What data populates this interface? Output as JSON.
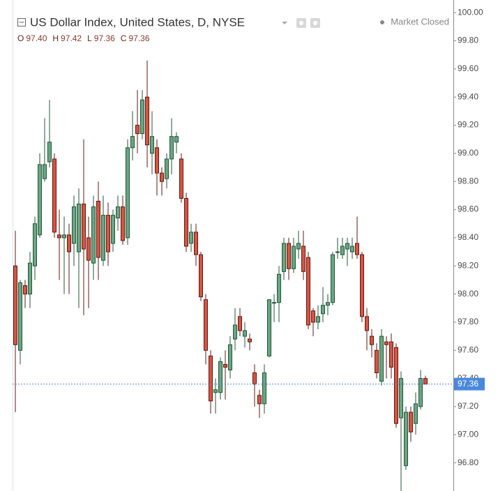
{
  "chart_data": {
    "type": "candlestick",
    "title": "US Dollar Index, United States, D, NYSE",
    "status": "Market Closed",
    "ohlc_legend": {
      "labels": [
        "O",
        "H",
        "L",
        "C"
      ],
      "values": [
        97.4,
        97.42,
        97.36,
        97.36
      ],
      "value_labels": [
        "97.40",
        "97.42",
        "97.36",
        "97.36"
      ]
    },
    "last_price": {
      "value": 97.36,
      "label": "97.36"
    },
    "up_color": "#6ba583",
    "down_color": "#d75442",
    "up_border": "#225437",
    "down_border": "#5b1a13",
    "grid": false,
    "ylim": [
      96.6,
      100.09
    ],
    "yticks": [
      {
        "value": 96.8,
        "label": "96.80"
      },
      {
        "value": 97.0,
        "label": "97.00"
      },
      {
        "value": 97.2,
        "label": "97.20"
      },
      {
        "value": 97.4,
        "label": "97.40"
      },
      {
        "value": 97.6,
        "label": "97.60"
      },
      {
        "value": 97.8,
        "label": "97.80"
      },
      {
        "value": 98.0,
        "label": "98.00"
      },
      {
        "value": 98.2,
        "label": "98.20"
      },
      {
        "value": 98.4,
        "label": "98.40"
      },
      {
        "value": 98.6,
        "label": "98.60"
      },
      {
        "value": 98.8,
        "label": "98.80"
      },
      {
        "value": 99.0,
        "label": "99.00"
      },
      {
        "value": 99.2,
        "label": "99.20"
      },
      {
        "value": 99.4,
        "label": "99.40"
      },
      {
        "value": 99.6,
        "label": "99.60"
      },
      {
        "value": 99.8,
        "label": "99.80"
      },
      {
        "value": 100.0,
        "label": "100.00"
      }
    ],
    "open": [
      98.2,
      97.6,
      98.06,
      98.0,
      98.2,
      98.42,
      98.82,
      98.94,
      98.96,
      98.42,
      98.4,
      98.42,
      98.36,
      98.3,
      98.64,
      98.4,
      98.22,
      98.66,
      98.24,
      98.56,
      98.36,
      98.54,
      98.62,
      98.4,
      99.04,
      99.2,
      99.14,
      99.4,
      99.0,
      99.04,
      98.86,
      98.82,
      98.96,
      99.08,
      98.96,
      98.68,
      98.36,
      98.44,
      98.28,
      97.96,
      97.56,
      97.3,
      97.3,
      97.5,
      97.46,
      97.68,
      97.84,
      97.7,
      97.68,
      97.44,
      97.28,
      97.22,
      97.56,
      97.94,
      97.94,
      98.16,
      98.36,
      98.18,
      98.32,
      98.34,
      98.26,
      97.88,
      97.8,
      97.86,
      97.92,
      97.94,
      98.3,
      98.28,
      98.32,
      98.3,
      98.36,
      98.28,
      97.84,
      97.7,
      97.6,
      97.38,
      97.66,
      97.66,
      97.62,
      97.12,
      96.78,
      97.16,
      97.08,
      97.2,
      97.4
    ],
    "high": [
      98.45,
      98.1,
      98.1,
      98.3,
      98.55,
      99.0,
      99.25,
      99.38,
      99.0,
      98.6,
      98.55,
      98.5,
      98.7,
      98.75,
      99.1,
      98.55,
      98.7,
      98.8,
      98.7,
      98.65,
      98.6,
      98.7,
      98.7,
      99.1,
      99.3,
      99.45,
      99.45,
      99.66,
      99.3,
      99.1,
      98.9,
      99.0,
      99.25,
      99.15,
      99.0,
      98.72,
      98.5,
      98.5,
      98.3,
      98.0,
      97.6,
      97.4,
      97.55,
      97.6,
      97.7,
      97.9,
      97.9,
      97.8,
      97.72,
      97.5,
      97.32,
      97.5,
      97.96,
      98.0,
      98.2,
      98.4,
      98.4,
      98.4,
      98.45,
      98.45,
      98.3,
      97.9,
      97.92,
      98.05,
      98.0,
      98.3,
      98.4,
      98.4,
      98.4,
      98.4,
      98.55,
      98.3,
      97.9,
      97.75,
      97.65,
      97.75,
      97.7,
      97.72,
      97.65,
      97.45,
      97.2,
      97.2,
      97.3,
      97.46,
      97.42
    ],
    "low": [
      97.16,
      97.5,
      97.9,
      97.9,
      98.1,
      98.4,
      98.8,
      98.9,
      98.4,
      98.1,
      98.0,
      98.0,
      98.2,
      97.9,
      97.85,
      97.9,
      98.1,
      98.1,
      98.2,
      98.2,
      98.3,
      98.45,
      98.35,
      98.35,
      98.95,
      99.0,
      99.1,
      98.9,
      98.85,
      98.7,
      98.7,
      98.75,
      98.85,
      99.0,
      98.65,
      98.3,
      98.3,
      98.2,
      97.95,
      97.5,
      97.15,
      97.15,
      97.25,
      97.25,
      97.4,
      97.6,
      97.7,
      97.62,
      97.6,
      97.2,
      97.12,
      97.15,
      97.55,
      97.8,
      97.8,
      98.1,
      98.1,
      98.15,
      98.25,
      98.1,
      97.75,
      97.7,
      97.75,
      97.8,
      97.85,
      97.92,
      98.25,
      98.25,
      98.2,
      98.25,
      98.25,
      97.8,
      97.6,
      97.55,
      97.4,
      97.35,
      97.4,
      97.4,
      97.05,
      96.6,
      96.75,
      96.95,
      97.0,
      97.18,
      97.36
    ],
    "close": [
      97.64,
      98.08,
      98.0,
      98.22,
      98.5,
      98.92,
      98.92,
      99.08,
      98.44,
      98.4,
      98.42,
      98.3,
      98.62,
      98.64,
      98.32,
      98.24,
      98.62,
      98.26,
      98.56,
      98.3,
      98.56,
      98.62,
      98.38,
      99.04,
      99.12,
      99.14,
      99.38,
      99.06,
      99.12,
      98.86,
      98.8,
      98.96,
      99.12,
      99.12,
      98.68,
      98.34,
      98.44,
      98.28,
      97.98,
      97.6,
      97.24,
      97.32,
      97.52,
      97.48,
      97.64,
      97.78,
      97.74,
      97.74,
      97.66,
      97.36,
      97.22,
      97.44,
      97.96,
      97.94,
      98.14,
      98.36,
      98.18,
      98.34,
      98.36,
      98.16,
      97.78,
      97.8,
      97.84,
      97.92,
      97.94,
      98.28,
      98.3,
      98.34,
      98.36,
      98.34,
      98.28,
      97.84,
      97.74,
      97.64,
      97.44,
      97.7,
      97.64,
      97.48,
      97.08,
      97.4,
      97.16,
      97.02,
      97.22,
      97.4,
      97.36
    ]
  }
}
